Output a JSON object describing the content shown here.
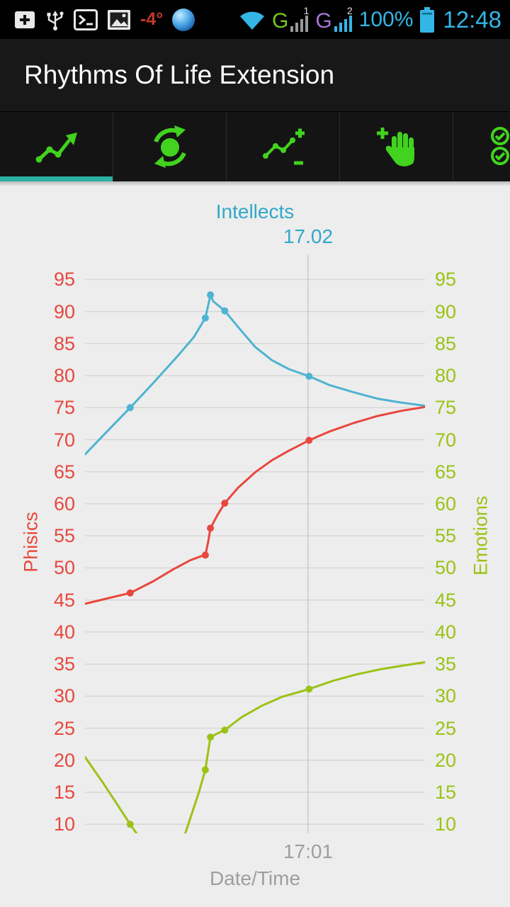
{
  "status_bar": {
    "time": "12:48",
    "battery_percent": "100%",
    "temperature": "-4°",
    "sim1": {
      "label": "G",
      "badge": "1"
    },
    "sim2": {
      "label": "G",
      "badge": "2"
    }
  },
  "app": {
    "title": "Rhythms Of Life Extension"
  },
  "tabs": [
    {
      "name": "trends",
      "icon": "trend-arrow-icon",
      "selected": true
    },
    {
      "name": "rotate",
      "icon": "circle-arrows-icon",
      "selected": false
    },
    {
      "name": "edit-values",
      "icon": "chart-plus-minus-icon",
      "selected": false
    },
    {
      "name": "manual-add",
      "icon": "hand-plus-icon",
      "selected": false
    },
    {
      "name": "checklist",
      "icon": "double-check-icon",
      "selected": false
    }
  ],
  "colors": {
    "holo_blue": "#33b5e5",
    "temp_red": "#c0392b",
    "sim1_green": "#76c81e",
    "sim1_bars": "#9a9a9a",
    "sim2_purple": "#a873d8",
    "sim2_bars": "#33b5e5",
    "tab_green": "#41d31f",
    "underline_teal": "#2eb0a4",
    "chart_bg": "#ededed",
    "chart_cyan": "#31a8c9",
    "chart_red": "#e8473e",
    "chart_green": "#9cc215",
    "chart_blue": "#4fb3d1",
    "gray_label": "#9e9e9e",
    "grid_line": "#d7d7d7",
    "grid_line_vertical": "#c8c8c8"
  },
  "chart_data": {
    "type": "line",
    "title": "Intellects",
    "top_gridline_label": "17.02",
    "bottom_gridline_label": "17:01",
    "xlabel": "Date/Time",
    "left_axis": {
      "label": "Phisics",
      "color": "#e8473e"
    },
    "right_axis": {
      "label": "Emotions",
      "color": "#9cc215"
    },
    "yticks": [
      95,
      90,
      85,
      80,
      75,
      70,
      65,
      60,
      55,
      50,
      45,
      40,
      35,
      30,
      25,
      20,
      15,
      10
    ],
    "ylim": [
      8.6,
      98.8
    ],
    "gridline_x": 0.656,
    "grid": true,
    "legend_position": "none",
    "series": [
      {
        "name": "Intellects",
        "color": "#4fb3d1",
        "points": [
          [
            0.0,
            67.7
          ],
          [
            0.065,
            71.3
          ],
          [
            0.133,
            75.0
          ],
          [
            0.2,
            78.8
          ],
          [
            0.27,
            82.9
          ],
          [
            0.32,
            86.0
          ],
          [
            0.354,
            89.0
          ],
          [
            0.362,
            90.9
          ],
          [
            0.369,
            92.6
          ],
          [
            0.377,
            91.6
          ],
          [
            0.411,
            90.1
          ],
          [
            0.45,
            87.6
          ],
          [
            0.5,
            84.5
          ],
          [
            0.55,
            82.4
          ],
          [
            0.6,
            81.0
          ],
          [
            0.659,
            79.9
          ],
          [
            0.72,
            78.5
          ],
          [
            0.79,
            77.4
          ],
          [
            0.86,
            76.4
          ],
          [
            0.93,
            75.8
          ],
          [
            1.0,
            75.3
          ]
        ],
        "markers": [
          [
            0.133,
            75.0
          ],
          [
            0.354,
            89.0
          ],
          [
            0.369,
            92.6
          ],
          [
            0.411,
            90.1
          ],
          [
            0.659,
            79.9
          ]
        ]
      },
      {
        "name": "Phisics",
        "color": "#e8473e",
        "points": [
          [
            0.0,
            44.4
          ],
          [
            0.07,
            45.3
          ],
          [
            0.133,
            46.1
          ],
          [
            0.2,
            47.9
          ],
          [
            0.26,
            49.8
          ],
          [
            0.31,
            51.2
          ],
          [
            0.34,
            51.8
          ],
          [
            0.354,
            52.0
          ],
          [
            0.362,
            54.0
          ],
          [
            0.369,
            56.2
          ],
          [
            0.39,
            58.3
          ],
          [
            0.411,
            60.1
          ],
          [
            0.45,
            62.5
          ],
          [
            0.5,
            64.9
          ],
          [
            0.55,
            66.8
          ],
          [
            0.6,
            68.3
          ],
          [
            0.659,
            69.9
          ],
          [
            0.72,
            71.3
          ],
          [
            0.79,
            72.6
          ],
          [
            0.86,
            73.7
          ],
          [
            0.93,
            74.5
          ],
          [
            1.0,
            75.1
          ]
        ],
        "markers": [
          [
            0.133,
            46.1
          ],
          [
            0.354,
            52.0
          ],
          [
            0.369,
            56.2
          ],
          [
            0.411,
            60.1
          ],
          [
            0.659,
            69.9
          ]
        ]
      },
      {
        "name": "Emotions",
        "color": "#9cc215",
        "points": [
          [
            0.0,
            20.5
          ],
          [
            0.05,
            16.7
          ],
          [
            0.09,
            13.5
          ],
          [
            0.133,
            10.0
          ],
          [
            0.17,
            7.2
          ],
          [
            0.2,
            5.0
          ],
          [
            0.235,
            3.9
          ],
          [
            0.265,
            4.8
          ],
          [
            0.29,
            7.8
          ],
          [
            0.315,
            11.8
          ],
          [
            0.335,
            15.0
          ],
          [
            0.354,
            18.5
          ],
          [
            0.362,
            21.3
          ],
          [
            0.369,
            23.6
          ],
          [
            0.39,
            24.2
          ],
          [
            0.411,
            24.7
          ],
          [
            0.46,
            26.7
          ],
          [
            0.52,
            28.5
          ],
          [
            0.58,
            29.9
          ],
          [
            0.659,
            31.1
          ],
          [
            0.73,
            32.4
          ],
          [
            0.8,
            33.4
          ],
          [
            0.87,
            34.2
          ],
          [
            0.94,
            34.8
          ],
          [
            1.0,
            35.3
          ]
        ],
        "markers": [
          [
            0.133,
            10.0
          ],
          [
            0.354,
            18.5
          ],
          [
            0.369,
            23.6
          ],
          [
            0.411,
            24.7
          ],
          [
            0.659,
            31.1
          ]
        ]
      }
    ]
  }
}
